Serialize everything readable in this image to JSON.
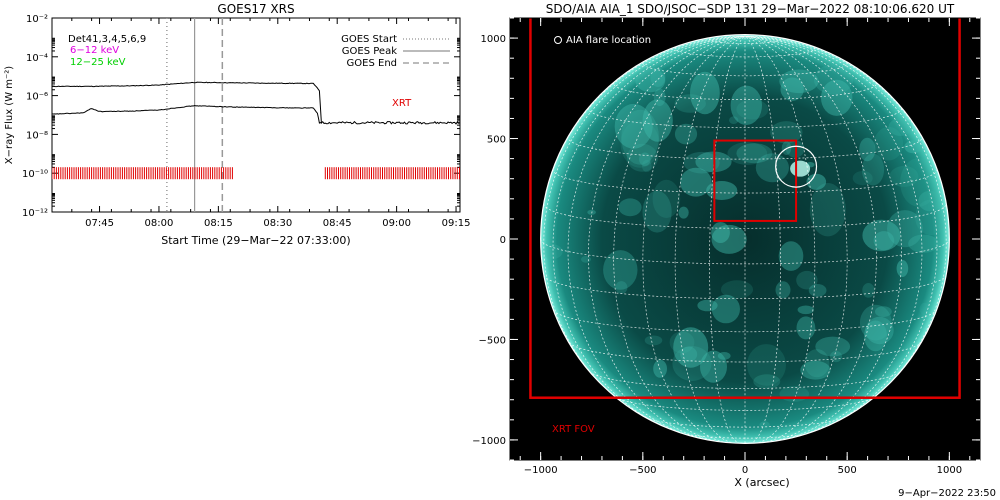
{
  "left_panel": {
    "title": "GOES17 XRS",
    "instrument_label": "Det41,3,4,5,6,9",
    "band_labels": [
      {
        "text": "6−12 keV",
        "color": "#e000e0"
      },
      {
        "text": "12−25 keV",
        "color": "#00d000"
      }
    ],
    "legend": [
      "GOES Start",
      "GOES Peak",
      "GOES End"
    ],
    "xrt_label": "XRT",
    "footer_date": "9−Apr−2022 23:50"
  },
  "right_panel": {
    "title": "SDO/AIA AIA_1 SDO/JSOC−SDP 131 29−Mar−2022 08:10:06.620 UT",
    "flare_legend": "AIA flare location",
    "fov_label": "XRT FOV"
  },
  "chart_data": [
    {
      "type": "line",
      "title": "GOES17 XRS",
      "xlabel": "Start Time (29−Mar−22 07:33:00)",
      "ylabel": "X−ray Flux (W m⁻²)",
      "yscale": "log",
      "ylim": [
        1e-12,
        0.01
      ],
      "xlim_minutes": [
        0,
        103
      ],
      "x_ticks": [
        "07:45",
        "08:00",
        "08:15",
        "08:30",
        "08:45",
        "09:00",
        "09:15"
      ],
      "x_tick_minutes": [
        12,
        27,
        42,
        57,
        72,
        87,
        102
      ],
      "y_ticks": [
        "10⁻¹²",
        "10⁻¹⁰",
        "10⁻⁸",
        "10⁻⁶",
        "10⁻⁴",
        "10⁻²"
      ],
      "y_tick_values": [
        1e-12,
        1e-10,
        1e-08,
        1e-06,
        0.0001,
        0.01
      ],
      "series": [
        {
          "name": "",
          "color": "#000000",
          "points": [
            [
              0,
              3e-06
            ],
            [
              10,
              3e-06
            ],
            [
              20,
              3.2e-06
            ],
            [
              27,
              3.5e-06
            ],
            [
              32,
              4.2e-06
            ],
            [
              36,
              4.8e-06
            ],
            [
              45,
              4.6e-06
            ],
            [
              52,
              4.4e-06
            ],
            [
              60,
              4.3e-06
            ],
            [
              66,
              4.2e-06
            ],
            [
              67.5,
              1.8e-06
            ],
            [
              68,
              4e-08
            ],
            [
              75,
              4e-08
            ],
            [
              90,
              4e-08
            ],
            [
              103,
              4e-08
            ]
          ]
        },
        {
          "name": "",
          "color": "#000000",
          "points": [
            [
              0,
              1.1e-07
            ],
            [
              8,
              1.3e-07
            ],
            [
              10,
              2.2e-07
            ],
            [
              12,
              1.5e-07
            ],
            [
              20,
              1.6e-07
            ],
            [
              27,
              1.8e-07
            ],
            [
              33,
              2.6e-07
            ],
            [
              36,
              3e-07
            ],
            [
              45,
              2.6e-07
            ],
            [
              55,
              2.4e-07
            ],
            [
              62,
              2.3e-07
            ],
            [
              66,
              2.3e-07
            ],
            [
              67,
              1.2e-07
            ],
            [
              67.5,
              4e-08
            ],
            [
              68,
              4e-08
            ]
          ]
        }
      ],
      "vertical_markers": [
        {
          "label": "GOES Start",
          "minute": 29,
          "style": "dotted"
        },
        {
          "label": "GOES Peak",
          "minute": 36,
          "style": "solid"
        },
        {
          "label": "GOES End",
          "minute": 43,
          "style": "dashed"
        }
      ],
      "xrt_coverage_minutes": [
        [
          0,
          46
        ],
        [
          69,
          103
        ]
      ],
      "xrt_coverage_flux": 1e-10,
      "legend_position": "top-right"
    },
    {
      "type": "image",
      "title": "SDO/AIA AIA_1 SDO/JSOC−SDP 131 29−Mar−2022 08:10:06.620 UT",
      "xlabel": "X (arcsec)",
      "ylabel": "",
      "xlim": [
        -1150,
        1150
      ],
      "ylim": [
        -1100,
        1100
      ],
      "x_ticks": [
        -1000,
        -500,
        0,
        500,
        1000
      ],
      "y_ticks": [
        -1000,
        -500,
        0,
        500,
        1000
      ],
      "solar_radius_arcsec": 1000,
      "grid_spacing_deg": 10,
      "xrt_fov": {
        "x": [
          -1050,
          1050
        ],
        "y": [
          -790,
          1110
        ]
      },
      "red_box": {
        "x": [
          -150,
          250
        ],
        "y": [
          90,
          490
        ]
      },
      "flare_location": {
        "x": 250,
        "y": 360,
        "radius": 100
      }
    }
  ]
}
